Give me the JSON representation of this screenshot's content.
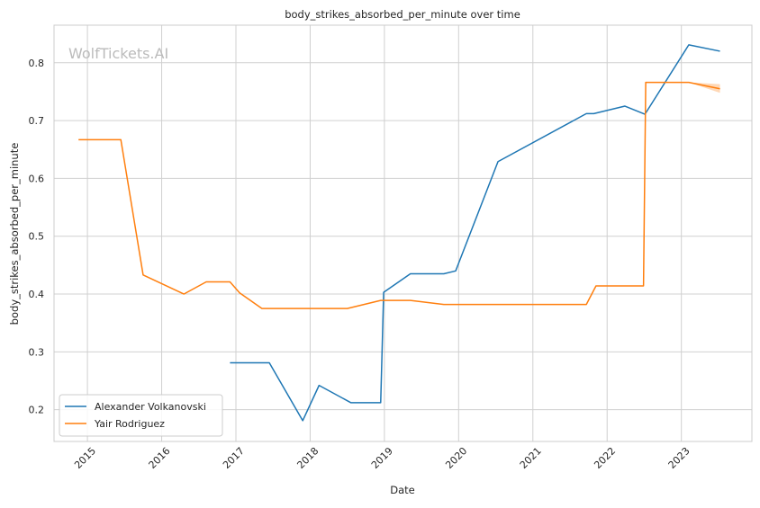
{
  "chart_data": {
    "type": "line",
    "title": "body_strikes_absorbed_per_minute over time",
    "xlabel": "Date",
    "ylabel": "body_strikes_absorbed_per_minute",
    "watermark": "WolfTickets.AI",
    "xlim": [
      2014.55,
      2023.95
    ],
    "ylim": [
      0.145,
      0.865
    ],
    "x_ticks": [
      2015,
      2016,
      2017,
      2018,
      2019,
      2020,
      2021,
      2022,
      2023
    ],
    "x_tick_labels": [
      "2015",
      "2016",
      "2017",
      "2018",
      "2019",
      "2020",
      "2021",
      "2022",
      "2023"
    ],
    "y_ticks": [
      0.2,
      0.3,
      0.4,
      0.5,
      0.6,
      0.7,
      0.8
    ],
    "y_tick_labels": [
      "0.2",
      "0.3",
      "0.4",
      "0.5",
      "0.6",
      "0.7",
      "0.8"
    ],
    "grid": true,
    "legend_position": "lower-left",
    "series": [
      {
        "name": "Alexander Volkanovski",
        "color": "#1f77b4",
        "x": [
          2016.92,
          2017.45,
          2017.9,
          2018.12,
          2018.55,
          2018.95,
          2018.99,
          2019.35,
          2019.8,
          2019.96,
          2020.53,
          2021.72,
          2021.82,
          2022.24,
          2022.51,
          2023.1,
          2023.52
        ],
        "y": [
          0.281,
          0.281,
          0.181,
          0.242,
          0.212,
          0.212,
          0.403,
          0.435,
          0.435,
          0.44,
          0.629,
          0.712,
          0.712,
          0.725,
          0.711,
          0.831,
          0.82
        ]
      },
      {
        "name": "Yair Rodriguez",
        "color": "#ff7f0e",
        "x": [
          2014.88,
          2015.45,
          2015.75,
          2016.3,
          2016.6,
          2016.92,
          2017.05,
          2017.35,
          2018.5,
          2018.95,
          2019.35,
          2019.8,
          2021.72,
          2021.85,
          2022.49,
          2022.52,
          2023.1,
          2023.52
        ],
        "y": [
          0.667,
          0.667,
          0.433,
          0.4,
          0.421,
          0.421,
          0.402,
          0.375,
          0.375,
          0.389,
          0.389,
          0.382,
          0.382,
          0.414,
          0.414,
          0.766,
          0.766,
          0.755
        ],
        "band": {
          "x": [
            2023.1,
            2023.52
          ],
          "lower": [
            0.766,
            0.748
          ],
          "upper": [
            0.766,
            0.763
          ]
        }
      }
    ]
  }
}
